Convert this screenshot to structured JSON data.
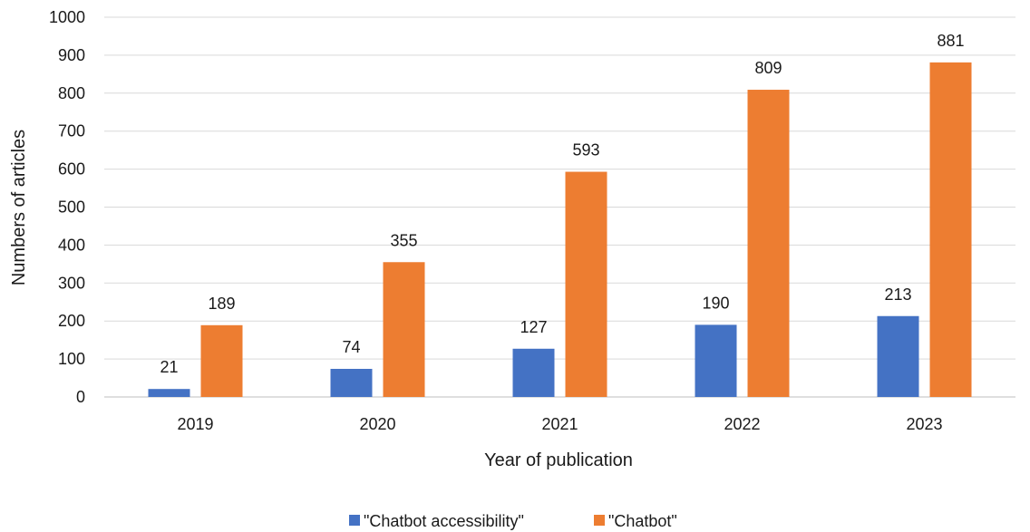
{
  "chart_data": {
    "type": "bar",
    "categories": [
      "2019",
      "2020",
      "2021",
      "2022",
      "2023"
    ],
    "series": [
      {
        "name": "\"Chatbot accessibility\"",
        "values": [
          21,
          74,
          127,
          190,
          213
        ],
        "color": "#4472C4"
      },
      {
        "name": "\"Chatbot\"",
        "values": [
          189,
          355,
          593,
          809,
          881
        ],
        "color": "#ED7D31"
      }
    ],
    "title": "",
    "xlabel": "Year of publication",
    "ylabel": "Numbers of articles",
    "ylim": [
      0,
      1000
    ],
    "yticks": [
      0,
      100,
      200,
      300,
      400,
      500,
      600,
      700,
      800,
      900,
      1000
    ],
    "grid": true,
    "legend_position": "bottom"
  }
}
